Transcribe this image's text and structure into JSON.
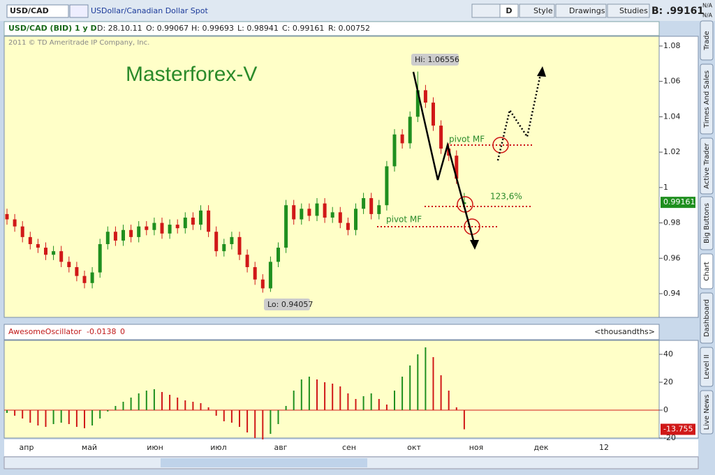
{
  "toolbar": {
    "symbol": "USD/CAD",
    "description": "USDollar/Canadian Dollar Spot",
    "period": "D",
    "style": "Style",
    "drawings": "Drawings",
    "studies": "Studies",
    "bid": "B: .99161",
    "na1": "N/A",
    "na2": "N/A"
  },
  "header": {
    "instrument": "USD/CAD (BID) 1 y D",
    "date": "D: 28.10.11",
    "open": "O: 0.99067",
    "high": "H: 0.99693",
    "low": "L: 0.98941",
    "close": "C: 0.99161",
    "range": "R: 0.00752",
    "copyright": "2011 © TD Ameritrade IP Company, Inc."
  },
  "annotations": {
    "watermark": "Masterforex-V",
    "pivot_top": "pivot MF",
    "fib": "123,6%",
    "pivot_bottom": "pivot MF",
    "hi": "Hi: 1.06556",
    "lo": "Lo: 0.94057"
  },
  "oscillator_header": {
    "name": "AwesomeOscillator",
    "value": "-0.0138",
    "zero": "0",
    "units": "<thousandths>"
  },
  "x_axis_labels": [
    "апр",
    "май",
    "июн",
    "июл",
    "авг",
    "сен",
    "окт",
    "ноя",
    "дек",
    "12"
  ],
  "side_tabs": [
    "Trade",
    "Times And Sales",
    "Active Trader",
    "Big Buttons",
    "Chart",
    "Dashboard",
    "Level II",
    "Live News"
  ],
  "chart_data": [
    {
      "type": "candlestick",
      "ylim": [
        0.9266,
        1.0855
      ],
      "yticks": [
        0.94,
        0.96,
        0.98,
        1,
        1.02,
        1.04,
        1.06,
        1.08
      ],
      "up_color": "#1f8f1f",
      "down_color": "#d01818",
      "open": [
        0.985,
        0.982,
        0.978,
        0.972,
        0.968,
        0.966,
        0.962,
        0.964,
        0.958,
        0.955,
        0.95,
        0.946,
        0.952,
        0.968,
        0.975,
        0.97,
        0.976,
        0.972,
        0.978,
        0.976,
        0.98,
        0.974,
        0.979,
        0.977,
        0.983,
        0.979,
        0.987,
        0.975,
        0.964,
        0.968,
        0.972,
        0.962,
        0.955,
        0.948,
        0.943,
        0.958,
        0.966,
        0.99,
        0.982,
        0.988,
        0.984,
        0.991,
        0.983,
        0.986,
        0.98,
        0.976,
        0.988,
        0.994,
        0.985,
        0.99,
        1.012,
        1.03,
        1.025,
        1.04,
        1.055,
        1.048,
        1.035,
        1.022,
        1.018,
        0.99067
      ],
      "high": [
        0.988,
        0.985,
        0.981,
        0.975,
        0.971,
        0.969,
        0.967,
        0.967,
        0.961,
        0.958,
        0.953,
        0.955,
        0.971,
        0.978,
        0.978,
        0.979,
        0.979,
        0.981,
        0.981,
        0.983,
        0.983,
        0.982,
        0.982,
        0.986,
        0.986,
        0.99,
        0.99,
        0.978,
        0.971,
        0.975,
        0.975,
        0.965,
        0.958,
        0.951,
        0.961,
        0.969,
        0.993,
        0.993,
        0.991,
        0.991,
        0.994,
        0.994,
        0.989,
        0.989,
        0.983,
        0.991,
        0.997,
        0.997,
        0.993,
        1.015,
        1.033,
        1.033,
        1.043,
        1.06556,
        1.058,
        1.051,
        1.038,
        1.025,
        1.021,
        0.99693
      ],
      "low": [
        0.979,
        0.975,
        0.969,
        0.965,
        0.963,
        0.959,
        0.959,
        0.955,
        0.952,
        0.947,
        0.943,
        0.943,
        0.949,
        0.965,
        0.967,
        0.967,
        0.969,
        0.969,
        0.973,
        0.973,
        0.971,
        0.971,
        0.974,
        0.974,
        0.976,
        0.976,
        0.972,
        0.961,
        0.961,
        0.965,
        0.959,
        0.952,
        0.945,
        0.94057,
        0.941,
        0.955,
        0.963,
        0.979,
        0.979,
        0.981,
        0.981,
        0.98,
        0.98,
        0.977,
        0.973,
        0.973,
        0.985,
        0.982,
        0.982,
        0.987,
        1.009,
        1.022,
        1.022,
        1.037,
        1.045,
        1.032,
        1.019,
        1.015,
        1.002,
        0.98941
      ],
      "close": [
        0.982,
        0.978,
        0.972,
        0.968,
        0.966,
        0.962,
        0.964,
        0.958,
        0.955,
        0.95,
        0.946,
        0.952,
        0.968,
        0.975,
        0.97,
        0.976,
        0.972,
        0.978,
        0.976,
        0.98,
        0.974,
        0.979,
        0.977,
        0.983,
        0.979,
        0.987,
        0.975,
        0.964,
        0.968,
        0.972,
        0.962,
        0.955,
        0.948,
        0.943,
        0.958,
        0.966,
        0.99,
        0.982,
        0.988,
        0.984,
        0.991,
        0.983,
        0.986,
        0.98,
        0.976,
        0.988,
        0.994,
        0.985,
        0.99,
        1.012,
        1.03,
        1.025,
        1.04,
        1.055,
        1.048,
        1.035,
        1.022,
        1.018,
        1.005,
        0.99161
      ]
    },
    {
      "type": "bar",
      "ylim": [
        -20,
        50
      ],
      "yticks": [
        -20,
        0,
        20,
        40
      ],
      "up_color": "#1f8f1f",
      "down_color": "#d01818",
      "values": [
        -2,
        -4,
        -6,
        -9,
        -11,
        -12,
        -10,
        -9,
        -10,
        -12,
        -13,
        -11,
        -6,
        -1,
        3,
        6,
        9,
        12,
        14,
        15,
        13,
        11,
        9,
        7,
        6,
        5,
        2,
        -4,
        -8,
        -9,
        -12,
        -16,
        -20,
        -21,
        -17,
        -10,
        3,
        14,
        22,
        24,
        22,
        20,
        19,
        17,
        12,
        8,
        10,
        12,
        8,
        4,
        14,
        24,
        32,
        40,
        45,
        38,
        25,
        14,
        2,
        -13.755
      ]
    }
  ]
}
